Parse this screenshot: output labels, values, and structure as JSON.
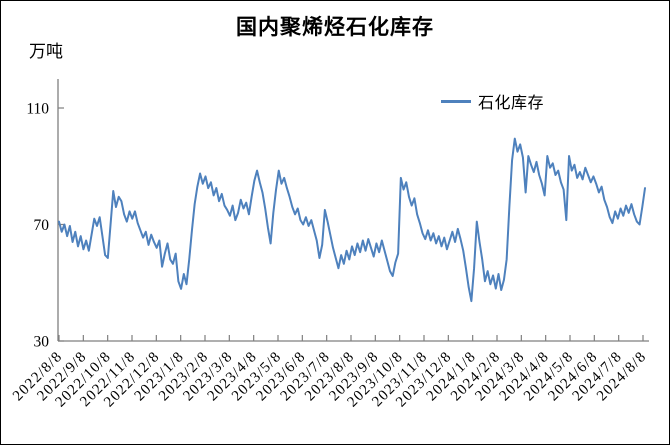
{
  "chart_data": {
    "type": "line",
    "title": "国内聚烯烃石化库存",
    "ylabel": "万吨",
    "xlabel": "",
    "ylim": [
      30,
      120
    ],
    "yticks": [
      30,
      70,
      110
    ],
    "grid": false,
    "legend_position": "inside-top, right of center",
    "background": "#ffffff",
    "axis_color": "#7f7f7f",
    "text_color": "#000000",
    "x_range": [
      "2022/8/8",
      "2024/8/8"
    ],
    "x_tick_labels": [
      "2022/8/8",
      "2022/9/8",
      "2022/10/8",
      "2022/11/8",
      "2022/12/8",
      "2023/1/8",
      "2023/2/8",
      "2023/3/8",
      "2023/4/8",
      "2023/5/8",
      "2023/6/8",
      "2023/7/8",
      "2023/8/8",
      "2023/9/8",
      "2023/10/8",
      "2023/11/8",
      "2023/12/8",
      "2024/1/8",
      "2024/2/8",
      "2024/3/8",
      "2024/4/8",
      "2024/5/8",
      "2024/6/8",
      "2024/7/8",
      "2024/8/8"
    ],
    "series": [
      {
        "name": "石化库存",
        "color": "#4e81bd",
        "values": [
          71,
          67.5,
          70,
          66,
          69.5,
          64,
          67.5,
          62.5,
          66,
          61.5,
          64.5,
          61,
          66.5,
          72,
          69.5,
          72.5,
          66,
          59.5,
          58.5,
          70,
          81.5,
          76,
          79.5,
          78,
          73.5,
          71,
          74.5,
          72,
          74.5,
          70.5,
          68,
          65.5,
          67.5,
          63,
          66.5,
          64,
          62,
          64.5,
          55.5,
          60,
          63.5,
          58,
          56.5,
          60,
          50.5,
          47.9,
          53,
          49.5,
          58,
          68,
          77,
          83,
          87.5,
          84,
          86.5,
          82.5,
          84.5,
          80,
          82.5,
          78,
          80.5,
          76.5,
          75,
          73,
          76.5,
          71.5,
          74,
          78.5,
          75.5,
          77.5,
          73.5,
          79.5,
          85,
          88.5,
          84.5,
          81,
          75.5,
          69,
          63.5,
          74,
          82,
          88.5,
          84,
          86,
          82.5,
          79.5,
          76,
          73.5,
          75.5,
          71.5,
          70,
          72.5,
          69.5,
          71.5,
          68,
          64.5,
          58.5,
          63,
          75,
          71,
          66.5,
          62,
          58.5,
          55,
          59.5,
          56.5,
          61,
          58,
          62.5,
          59.5,
          63.5,
          60.5,
          64.5,
          61,
          65,
          62,
          59,
          63.5,
          60.5,
          64.5,
          61,
          57.5,
          54,
          52.3,
          57,
          60,
          86,
          82,
          84.5,
          79.5,
          76.5,
          79,
          73.5,
          70.5,
          67,
          65,
          68,
          64.5,
          67,
          63.5,
          66,
          62.5,
          65.5,
          61.5,
          64.5,
          67.5,
          64,
          68.5,
          65,
          61,
          55,
          48.5,
          43.7,
          55,
          71,
          64,
          58,
          50.5,
          54,
          49.5,
          52.5,
          48,
          53,
          47.5,
          51,
          58,
          76,
          92,
          99.5,
          95,
          97.5,
          93,
          81,
          93.5,
          90.5,
          88,
          91.5,
          87,
          84,
          80,
          93.5,
          89.5,
          91,
          87,
          88.5,
          84.5,
          82,
          71.5,
          93.5,
          88.5,
          90.5,
          86,
          88,
          85.5,
          89.5,
          87,
          84.5,
          86.5,
          84,
          81,
          83,
          78.5,
          76,
          72.5,
          70.5,
          74.5,
          72,
          75.5,
          73,
          76.5,
          74,
          77,
          73.5,
          71,
          70,
          76,
          82.5
        ]
      }
    ]
  }
}
